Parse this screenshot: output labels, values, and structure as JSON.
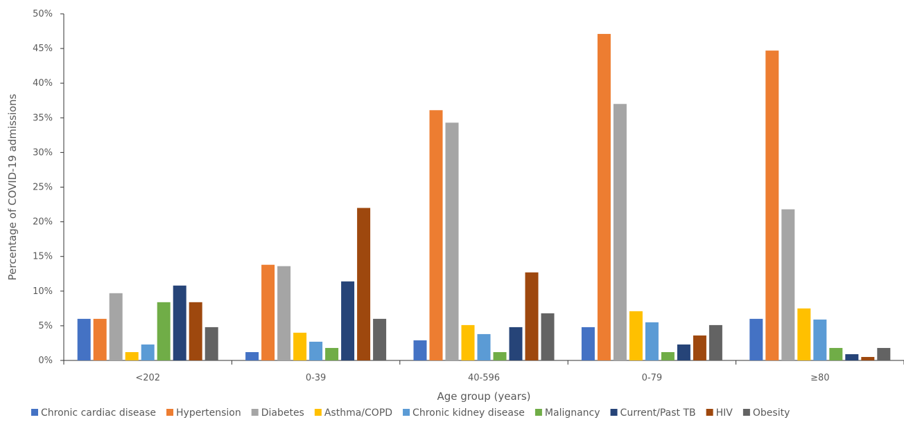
{
  "chart_data": {
    "type": "bar",
    "title": "",
    "xlabel": "Age group (years)",
    "ylabel": "Percentage of COVID-19 admissions",
    "ylim": [
      0,
      50
    ],
    "y_ticks": [
      "0%",
      "5%",
      "10%",
      "15%",
      "20%",
      "25%",
      "30%",
      "35%",
      "40%",
      "45%",
      "50%"
    ],
    "categories": [
      "<202",
      "0-39",
      "40-596",
      "0-79",
      "≥80"
    ],
    "legend_position": "bottom",
    "grid": false,
    "series": [
      {
        "name": "Chronic cardiac disease",
        "color": "#4472C4",
        "values": [
          6.0,
          1.2,
          2.9,
          4.8,
          6.0
        ]
      },
      {
        "name": "Hypertension",
        "color": "#ED7D31",
        "values": [
          6.0,
          13.8,
          36.1,
          47.1,
          44.7
        ]
      },
      {
        "name": "Diabetes",
        "color": "#A5A5A5",
        "values": [
          9.7,
          13.6,
          34.3,
          37.0,
          21.8
        ]
      },
      {
        "name": "Asthma/COPD",
        "color": "#FFC000",
        "values": [
          1.2,
          4.0,
          5.1,
          7.1,
          7.5
        ]
      },
      {
        "name": "Chronic kidney disease",
        "color": "#5B9BD5",
        "values": [
          2.3,
          2.7,
          3.8,
          5.5,
          5.9
        ]
      },
      {
        "name": "Malignancy",
        "color": "#70AD47",
        "values": [
          8.4,
          1.8,
          1.2,
          1.2,
          1.8
        ]
      },
      {
        "name": "Current/Past TB",
        "color": "#264478",
        "values": [
          10.8,
          11.4,
          4.8,
          2.3,
          0.9
        ]
      },
      {
        "name": "HIV",
        "color": "#9E480E",
        "values": [
          8.4,
          22.0,
          12.7,
          3.6,
          0.5
        ]
      },
      {
        "name": "Obesity",
        "color": "#636363",
        "values": [
          4.8,
          6.0,
          6.8,
          5.1,
          1.8
        ]
      }
    ]
  }
}
